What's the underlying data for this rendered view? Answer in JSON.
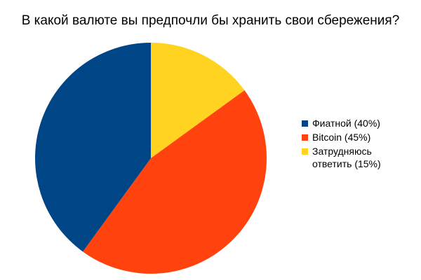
{
  "chart_data": {
    "type": "pie",
    "title": "В какой валюте вы предпочли бы хранить свои сбережения?",
    "slices": [
      {
        "label": "Затрудняюсь ответить (15%)",
        "value": 15,
        "color": "#FFD320"
      },
      {
        "label": "Bitcoin (45%)",
        "value": 45,
        "color": "#FF420E"
      },
      {
        "label": "Фиатной (40%)",
        "value": 40,
        "color": "#004586"
      }
    ],
    "legend": [
      {
        "label": "Фиатной (40%)",
        "color": "#004586"
      },
      {
        "label": "Bitcoin (45%)",
        "color": "#FF420E"
      },
      {
        "label": "Затрудняюсь ответить (15%)",
        "color": "#FFD320"
      }
    ],
    "legend_position": "right"
  }
}
